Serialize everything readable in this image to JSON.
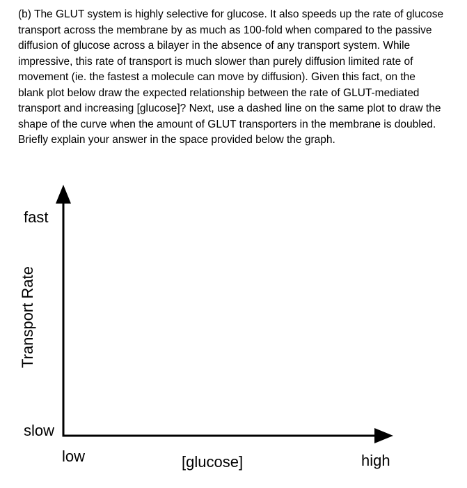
{
  "question": {
    "lines": [
      "(b) The GLUT system is highly selective for glucose. It also speeds up the rate of glucose",
      "transport across the membrane by as much as 100-fold when compared to the passive",
      "diffusion of glucose across a bilayer in the absence of any transport system. While",
      "impressive, this rate of transport is much slower than purely diffusion limited rate of",
      "movement (ie. the fastest a molecule can move by diffusion). Given this fact, on the",
      "blank plot below draw the expected relationship between the rate of GLUT-mediated",
      "transport and increasing [glucose]? Next, use a dashed line on the same plot to draw the",
      "shape of the curve when the amount of GLUT transporters in the membrane is doubled.",
      "Briefly explain your answer in the space provided below the graph."
    ]
  },
  "plot": {
    "y_axis_title": "Transport Rate",
    "y_top_label": "fast",
    "y_bottom_label": "slow",
    "x_axis_title": "[glucose]",
    "x_left_label": "low",
    "x_right_label": "high",
    "axis_color": "#000000"
  }
}
